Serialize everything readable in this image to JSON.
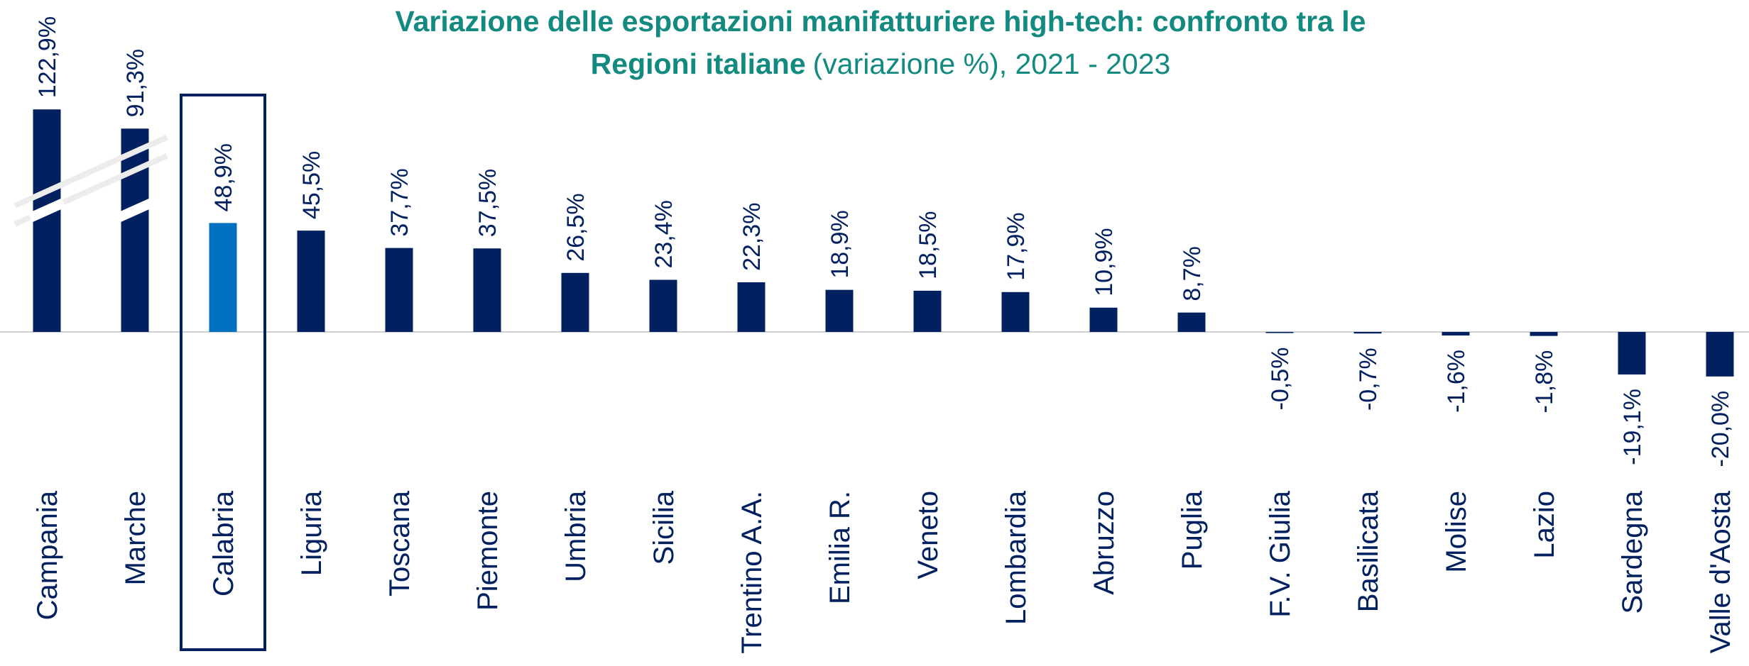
{
  "chart_data": {
    "type": "bar",
    "title_lines": [
      "Variazione delle esportazioni manifatturiere high-tech: confronto tra le",
      "Regioni italiane"
    ],
    "subtitle": "(variazione %), 2021 - 2023",
    "categories": [
      "Campania",
      "Marche",
      "Calabria",
      "Liguria",
      "Toscana",
      "Piemonte",
      "Umbria",
      "Sicilia",
      "Trentino A.A.",
      "Emilia R.",
      "Veneto",
      "Lombardia",
      "Abruzzo",
      "Puglia",
      "F.V. Giulia",
      "Basilicata",
      "Molise",
      "Lazio",
      "Sardegna",
      "Valle d'Aosta"
    ],
    "values": [
      122.9,
      91.3,
      48.9,
      45.5,
      37.7,
      37.5,
      26.5,
      23.4,
      22.3,
      18.9,
      18.5,
      17.9,
      10.9,
      8.7,
      -0.5,
      -0.7,
      -1.6,
      -1.8,
      -19.1,
      -20.0
    ],
    "value_labels": [
      "122,9%",
      "91,3%",
      "48,9%",
      "45,5%",
      "37,7%",
      "37,5%",
      "26,5%",
      "23,4%",
      "22,3%",
      "18,9%",
      "18,5%",
      "17,9%",
      "10,9%",
      "8,7%",
      "-0,5%",
      "-0,7%",
      "-1,6%",
      "-1,8%",
      "-19,1%",
      "-20,0%"
    ],
    "color": "#002060",
    "colors": [
      "#002060",
      "#002060",
      "#0070c0",
      "#002060",
      "#002060",
      "#002060",
      "#002060",
      "#002060",
      "#002060",
      "#002060",
      "#002060",
      "#002060",
      "#002060",
      "#002060",
      "#002060",
      "#002060",
      "#002060",
      "#002060",
      "#002060",
      "#002060"
    ],
    "title_color": "#138a80",
    "axis_break": true
  }
}
